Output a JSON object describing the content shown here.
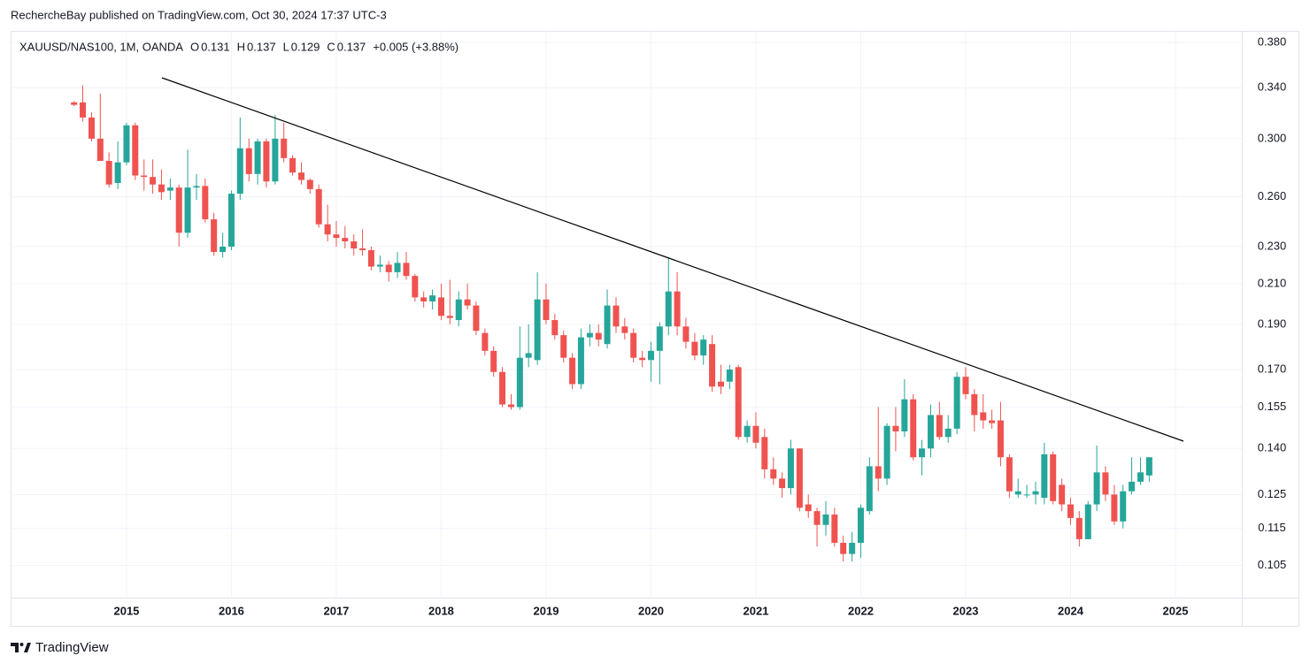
{
  "header": {
    "byline": "RechercheBay published on TradingView.com, Oct 30, 2024 17:37 UTC-3"
  },
  "footer": {
    "brand": "TradingView"
  },
  "chart_data": {
    "type": "candlestick",
    "legend": {
      "symbol": "XAUUSD/NAS100, 1M, OANDA",
      "items": [
        {
          "key": "O",
          "value": 0.131
        },
        {
          "key": "H",
          "value": 0.137
        },
        {
          "key": "L",
          "value": 0.129
        },
        {
          "key": "C",
          "value": 0.137
        }
      ],
      "change": "+0.005 (+3.88%)"
    },
    "up_color": "#26a69a",
    "down_color": "#ef5350",
    "log_scale": true,
    "grid": true,
    "xlim": [
      2013.895,
      2025.633
    ],
    "xticks": [
      2015,
      2016,
      2017,
      2018,
      2019,
      2020,
      2021,
      2022,
      2023,
      2024,
      2025
    ],
    "ylim": [
      0.097,
      0.391
    ],
    "yticks": [
      {
        "value": 0.38,
        "label": "0.380"
      },
      {
        "value": 0.34,
        "label": "0.340"
      },
      {
        "value": 0.3,
        "label": "0.300"
      },
      {
        "value": 0.26,
        "label": "0.260"
      },
      {
        "value": 0.23,
        "label": "0.230"
      },
      {
        "value": 0.21,
        "label": "0.210"
      },
      {
        "value": 0.19,
        "label": "0.190"
      },
      {
        "value": 0.17,
        "label": "0.170"
      },
      0.155,
      {
        "value": 0.14,
        "label": "0.140"
      },
      0.125,
      0.115,
      0.105
    ],
    "x": [
      2014.5,
      2014.583,
      2014.667,
      2014.75,
      2014.833,
      2014.917,
      2015,
      2015.083,
      2015.167,
      2015.25,
      2015.333,
      2015.417,
      2015.5,
      2015.583,
      2015.667,
      2015.75,
      2015.833,
      2015.917,
      2016,
      2016.083,
      2016.167,
      2016.25,
      2016.333,
      2016.417,
      2016.5,
      2016.583,
      2016.667,
      2016.75,
      2016.833,
      2016.917,
      2017,
      2017.083,
      2017.167,
      2017.25,
      2017.333,
      2017.417,
      2017.5,
      2017.583,
      2017.667,
      2017.75,
      2017.833,
      2017.917,
      2018,
      2018.083,
      2018.167,
      2018.25,
      2018.333,
      2018.417,
      2018.5,
      2018.583,
      2018.667,
      2018.75,
      2018.833,
      2018.917,
      2019,
      2019.083,
      2019.167,
      2019.25,
      2019.333,
      2019.417,
      2019.5,
      2019.583,
      2019.667,
      2019.75,
      2019.833,
      2019.917,
      2020,
      2020.083,
      2020.167,
      2020.25,
      2020.333,
      2020.417,
      2020.5,
      2020.583,
      2020.667,
      2020.75,
      2020.833,
      2020.917,
      2021,
      2021.083,
      2021.167,
      2021.25,
      2021.333,
      2021.417,
      2021.5,
      2021.583,
      2021.667,
      2021.75,
      2021.833,
      2021.917,
      2022,
      2022.083,
      2022.167,
      2022.25,
      2022.333,
      2022.417,
      2022.5,
      2022.583,
      2022.667,
      2022.75,
      2022.833,
      2022.917,
      2023,
      2023.083,
      2023.167,
      2023.25,
      2023.333,
      2023.417,
      2023.5,
      2023.583,
      2023.667,
      2023.75,
      2023.833,
      2023.917,
      2024,
      2024.083,
      2024.167,
      2024.25,
      2024.333,
      2024.417,
      2024.5,
      2024.583,
      2024.667,
      2024.75
    ],
    "open": [
      0.328,
      0.328,
      0.316,
      0.3,
      0.284,
      0.269,
      0.283,
      0.31,
      0.274,
      0.273,
      0.268,
      0.264,
      0.266,
      0.238,
      0.266,
      0.267,
      0.246,
      0.227,
      0.23,
      0.262,
      0.293,
      0.275,
      0.298,
      0.27,
      0.3,
      0.286,
      0.276,
      0.271,
      0.265,
      0.243,
      0.237,
      0.235,
      0.233,
      0.229,
      0.228,
      0.219,
      0.22,
      0.216,
      0.221,
      0.214,
      0.203,
      0.201,
      0.203,
      0.194,
      0.192,
      0.202,
      0.199,
      0.186,
      0.178,
      0.169,
      0.156,
      0.155,
      0.175,
      0.174,
      0.202,
      0.192,
      0.185,
      0.175,
      0.164,
      0.184,
      0.186,
      0.181,
      0.199,
      0.189,
      0.186,
      0.175,
      0.174,
      0.178,
      0.189,
      0.206,
      0.189,
      0.182,
      0.176,
      0.181,
      0.165,
      0.165,
      0.171,
      0.144,
      0.148,
      0.144,
      0.133,
      0.13,
      0.127,
      0.14,
      0.122,
      0.12,
      0.116,
      0.119,
      0.111,
      0.108,
      0.111,
      0.12,
      0.134,
      0.13,
      0.148,
      0.146,
      0.158,
      0.137,
      0.14,
      0.152,
      0.144,
      0.147,
      0.167,
      0.16,
      0.153,
      0.15,
      0.15,
      0.137,
      0.125,
      0.125,
      0.125,
      0.124,
      0.138,
      0.128,
      0.122,
      0.118,
      0.112,
      0.122,
      0.132,
      0.125,
      0.117,
      0.126,
      0.129,
      0.131
    ],
    "high": [
      0.329,
      0.342,
      0.32,
      0.335,
      0.29,
      0.298,
      0.312,
      0.312,
      0.285,
      0.285,
      0.278,
      0.272,
      0.268,
      0.292,
      0.275,
      0.272,
      0.25,
      0.238,
      0.264,
      0.316,
      0.3,
      0.3,
      0.3,
      0.318,
      0.312,
      0.288,
      0.283,
      0.272,
      0.268,
      0.255,
      0.245,
      0.242,
      0.237,
      0.24,
      0.23,
      0.225,
      0.222,
      0.227,
      0.227,
      0.215,
      0.206,
      0.207,
      0.21,
      0.212,
      0.206,
      0.21,
      0.201,
      0.188,
      0.18,
      0.171,
      0.16,
      0.189,
      0.19,
      0.216,
      0.21,
      0.195,
      0.187,
      0.177,
      0.188,
      0.19,
      0.19,
      0.207,
      0.203,
      0.193,
      0.188,
      0.178,
      0.182,
      0.191,
      0.224,
      0.216,
      0.193,
      0.186,
      0.185,
      0.185,
      0.172,
      0.172,
      0.172,
      0.15,
      0.153,
      0.147,
      0.137,
      0.132,
      0.143,
      0.14,
      0.125,
      0.121,
      0.123,
      0.121,
      0.113,
      0.114,
      0.122,
      0.137,
      0.155,
      0.149,
      0.155,
      0.166,
      0.16,
      0.143,
      0.156,
      0.157,
      0.152,
      0.169,
      0.171,
      0.162,
      0.16,
      0.154,
      0.157,
      0.138,
      0.13,
      0.128,
      0.129,
      0.142,
      0.139,
      0.13,
      0.124,
      0.12,
      0.123,
      0.141,
      0.134,
      0.128,
      0.128,
      0.137,
      0.137,
      0.137
    ],
    "low": [
      0.325,
      0.313,
      0.298,
      0.284,
      0.266,
      0.265,
      0.281,
      0.271,
      0.264,
      0.262,
      0.258,
      0.258,
      0.23,
      0.235,
      0.258,
      0.244,
      0.225,
      0.224,
      0.228,
      0.258,
      0.27,
      0.268,
      0.266,
      0.268,
      0.283,
      0.274,
      0.268,
      0.262,
      0.241,
      0.233,
      0.23,
      0.229,
      0.225,
      0.225,
      0.217,
      0.216,
      0.211,
      0.213,
      0.212,
      0.201,
      0.198,
      0.197,
      0.192,
      0.19,
      0.189,
      0.197,
      0.185,
      0.176,
      0.167,
      0.155,
      0.154,
      0.154,
      0.171,
      0.172,
      0.19,
      0.183,
      0.173,
      0.162,
      0.162,
      0.18,
      0.18,
      0.179,
      0.186,
      0.183,
      0.173,
      0.171,
      0.165,
      0.164,
      0.185,
      0.185,
      0.179,
      0.174,
      0.172,
      0.161,
      0.16,
      0.162,
      0.143,
      0.142,
      0.14,
      0.13,
      0.128,
      0.124,
      0.125,
      0.12,
      0.118,
      0.11,
      0.113,
      0.11,
      0.106,
      0.106,
      0.107,
      0.119,
      0.126,
      0.128,
      0.139,
      0.144,
      0.136,
      0.131,
      0.137,
      0.143,
      0.142,
      0.145,
      0.158,
      0.146,
      0.147,
      0.147,
      0.134,
      0.124,
      0.124,
      0.124,
      0.122,
      0.122,
      0.122,
      0.12,
      0.116,
      0.11,
      0.112,
      0.12,
      0.123,
      0.116,
      0.115,
      0.125,
      0.128,
      0.129
    ],
    "close": [
      0.326,
      0.316,
      0.3,
      0.284,
      0.268,
      0.283,
      0.31,
      0.274,
      0.273,
      0.268,
      0.263,
      0.266,
      0.238,
      0.266,
      0.267,
      0.246,
      0.227,
      0.23,
      0.262,
      0.293,
      0.275,
      0.298,
      0.27,
      0.3,
      0.286,
      0.276,
      0.271,
      0.265,
      0.243,
      0.237,
      0.235,
      0.233,
      0.229,
      0.228,
      0.219,
      0.22,
      0.216,
      0.221,
      0.214,
      0.203,
      0.201,
      0.204,
      0.194,
      0.193,
      0.202,
      0.199,
      0.187,
      0.178,
      0.169,
      0.156,
      0.155,
      0.175,
      0.177,
      0.202,
      0.192,
      0.185,
      0.175,
      0.164,
      0.184,
      0.186,
      0.183,
      0.199,
      0.189,
      0.186,
      0.175,
      0.174,
      0.178,
      0.189,
      0.206,
      0.189,
      0.182,
      0.176,
      0.183,
      0.163,
      0.163,
      0.17,
      0.144,
      0.148,
      0.142,
      0.133,
      0.13,
      0.127,
      0.14,
      0.121,
      0.12,
      0.116,
      0.119,
      0.111,
      0.108,
      0.111,
      0.121,
      0.134,
      0.13,
      0.148,
      0.146,
      0.158,
      0.137,
      0.14,
      0.152,
      0.144,
      0.147,
      0.167,
      0.16,
      0.152,
      0.15,
      0.149,
      0.137,
      0.126,
      0.126,
      0.125,
      0.126,
      0.138,
      0.123,
      0.122,
      0.118,
      0.112,
      0.122,
      0.132,
      0.125,
      0.117,
      0.126,
      0.129,
      0.132,
      0.137
    ]
  }
}
